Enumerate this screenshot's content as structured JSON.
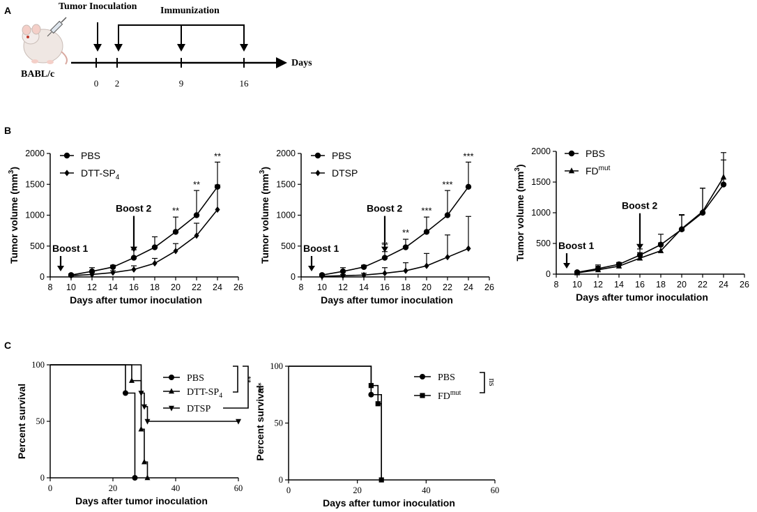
{
  "panel_labels": {
    "a": "A",
    "b": "B",
    "c": "C"
  },
  "timeline": {
    "tumor_inoculation": "Tumor Inoculation",
    "immunization": "Immunization",
    "days_label": "Days",
    "mouse_label": "BABL/c",
    "day_ticks": [
      "0",
      "2",
      "9",
      "16"
    ]
  },
  "colors": {
    "line": "#000000",
    "background": "#ffffff"
  },
  "chart_data": [
    {
      "id": "b1",
      "type": "line",
      "xlabel": "Days after tumor inoculation",
      "ylabel_main": "Tumor volume (mm",
      "ylabel_sup": "3",
      "ylabel_end": ")",
      "xlim": [
        8,
        26
      ],
      "ylim": [
        0,
        2000
      ],
      "xticks": [
        8,
        10,
        12,
        14,
        16,
        18,
        20,
        22,
        24,
        26
      ],
      "yticks": [
        0,
        500,
        1000,
        1500,
        2000
      ],
      "x": [
        10,
        12,
        14,
        16,
        18,
        20,
        22,
        24
      ],
      "series": [
        {
          "name": "PBS",
          "marker": "circle",
          "values": [
            30,
            90,
            160,
            310,
            480,
            730,
            1000,
            1460
          ],
          "err": [
            20,
            60,
            30,
            130,
            170,
            240,
            400,
            400
          ]
        },
        {
          "name": "DTT-SP",
          "sub": "4",
          "marker": "diamond",
          "values": [
            20,
            40,
            70,
            120,
            220,
            420,
            670,
            1090
          ],
          "err": [
            10,
            30,
            30,
            60,
            80,
            120,
            200,
            400
          ]
        }
      ],
      "significance": [
        {
          "x": 20,
          "y": 980,
          "label": "**"
        },
        {
          "x": 22,
          "y": 1400,
          "label": "**"
        },
        {
          "x": 24,
          "y": 1860,
          "label": "**"
        }
      ],
      "boosts": [
        {
          "label": "Boost 1",
          "x": 9,
          "y": 0
        },
        {
          "label": "Boost 2",
          "x": 16,
          "y": 310
        }
      ]
    },
    {
      "id": "b2",
      "type": "line",
      "xlabel": "Days after tumor inoculation",
      "ylabel_main": "Tumor volume (mm",
      "ylabel_sup": "3",
      "ylabel_end": ")",
      "xlim": [
        8,
        26
      ],
      "ylim": [
        0,
        2000
      ],
      "xticks": [
        8,
        10,
        12,
        14,
        16,
        18,
        20,
        22,
        24,
        26
      ],
      "yticks": [
        0,
        500,
        1000,
        1500,
        2000
      ],
      "x": [
        10,
        12,
        14,
        16,
        18,
        20,
        22,
        24
      ],
      "series": [
        {
          "name": "PBS",
          "marker": "circle",
          "values": [
            30,
            90,
            160,
            310,
            480,
            730,
            1000,
            1460
          ],
          "err": [
            20,
            60,
            30,
            100,
            130,
            240,
            400,
            400
          ]
        },
        {
          "name": "DTSP",
          "marker": "diamond",
          "values": [
            10,
            20,
            30,
            60,
            100,
            180,
            320,
            460
          ],
          "err": [
            10,
            20,
            30,
            90,
            130,
            200,
            360,
            520
          ]
        }
      ],
      "significance": [
        {
          "x": 16,
          "y": 420,
          "label": "**"
        },
        {
          "x": 18,
          "y": 620,
          "label": "**"
        },
        {
          "x": 20,
          "y": 980,
          "label": "***"
        },
        {
          "x": 22,
          "y": 1400,
          "label": "***"
        },
        {
          "x": 24,
          "y": 1860,
          "label": "***"
        }
      ],
      "boosts": [
        {
          "label": "Boost 1",
          "x": 9,
          "y": 0
        },
        {
          "label": "Boost 2",
          "x": 16,
          "y": 310
        }
      ]
    },
    {
      "id": "b3",
      "type": "line",
      "xlabel": "Days after tumor inoculation",
      "ylabel_main": "Tumor volume (mm",
      "ylabel_sup": "3",
      "ylabel_end": ")",
      "xlim": [
        8,
        26
      ],
      "ylim": [
        0,
        2000
      ],
      "xticks": [
        8,
        10,
        12,
        14,
        16,
        18,
        20,
        22,
        24,
        26
      ],
      "yticks": [
        0,
        500,
        1000,
        1500,
        2000
      ],
      "x": [
        10,
        12,
        14,
        16,
        18,
        20,
        22,
        24
      ],
      "series": [
        {
          "name": "PBS",
          "marker": "circle",
          "values": [
            30,
            90,
            160,
            310,
            480,
            730,
            1000,
            1460
          ],
          "err": [
            20,
            60,
            30,
            100,
            170,
            240,
            400,
            400
          ]
        },
        {
          "name": "FD",
          "sup": "mut",
          "marker": "triangle",
          "values": [
            20,
            70,
            130,
            260,
            380,
            740,
            1020,
            1580
          ],
          "err": [
            20,
            60,
            40,
            90,
            130,
            220,
            380,
            400
          ]
        }
      ],
      "significance": [],
      "boosts": [
        {
          "label": "Boost 1",
          "x": 9,
          "y": 0
        },
        {
          "label": "Boost 2",
          "x": 16,
          "y": 310
        }
      ]
    },
    {
      "id": "c1",
      "type": "line",
      "xlabel": "Days after tumor inoculation",
      "ylabel": "Percent survival",
      "xlim": [
        0,
        60
      ],
      "ylim": [
        0,
        100
      ],
      "xticks": [
        0,
        20,
        40,
        60
      ],
      "yticks": [
        0,
        50,
        100
      ],
      "series": [
        {
          "name": "PBS",
          "marker": "circle",
          "steps": [
            [
              0,
              100
            ],
            [
              24,
              100
            ],
            [
              24,
              75
            ],
            [
              27,
              75
            ],
            [
              27,
              0
            ]
          ],
          "points": [
            [
              24,
              75
            ],
            [
              27,
              0
            ]
          ]
        },
        {
          "name": "DTT-SP",
          "sub": "4",
          "marker": "triangle",
          "steps": [
            [
              0,
              100
            ],
            [
              26,
              100
            ],
            [
              26,
              86
            ],
            [
              29,
              86
            ],
            [
              29,
              43
            ],
            [
              30,
              43
            ],
            [
              30,
              14
            ],
            [
              31,
              14
            ],
            [
              31,
              0
            ]
          ],
          "points": [
            [
              26,
              86
            ],
            [
              29,
              43
            ],
            [
              30,
              14
            ],
            [
              31,
              0
            ]
          ]
        },
        {
          "name": "DTSP",
          "marker": "triangle-down",
          "steps": [
            [
              0,
              100
            ],
            [
              29,
              100
            ],
            [
              29,
              75
            ],
            [
              30,
              75
            ],
            [
              30,
              63
            ],
            [
              31,
              63
            ],
            [
              31,
              50
            ],
            [
              60,
              50
            ]
          ],
          "points": [
            [
              29,
              75
            ],
            [
              30,
              63
            ],
            [
              31,
              50
            ],
            [
              60,
              50
            ]
          ]
        }
      ],
      "significance": [
        {
          "label": "**"
        },
        {
          "label": "***"
        }
      ]
    },
    {
      "id": "c2",
      "type": "line",
      "xlabel": "Days after tumor inoculation",
      "ylabel": "Percent survival",
      "xlim": [
        0,
        60
      ],
      "ylim": [
        0,
        100
      ],
      "xticks": [
        0,
        20,
        40,
        60
      ],
      "yticks": [
        0,
        50,
        100
      ],
      "series": [
        {
          "name": "PBS",
          "marker": "circle",
          "steps": [
            [
              0,
              100
            ],
            [
              24,
              100
            ],
            [
              24,
              75
            ],
            [
              27,
              75
            ],
            [
              27,
              0
            ]
          ],
          "points": [
            [
              24,
              75
            ]
          ]
        },
        {
          "name": "FD",
          "sup": "mut",
          "marker": "square",
          "steps": [
            [
              0,
              100
            ],
            [
              24,
              100
            ],
            [
              24,
              83
            ],
            [
              26,
              83
            ],
            [
              26,
              67
            ],
            [
              27,
              67
            ],
            [
              27,
              0
            ]
          ],
          "points": [
            [
              24,
              83
            ],
            [
              26,
              67
            ],
            [
              27,
              0
            ]
          ]
        }
      ],
      "significance": [
        {
          "label": "ns"
        }
      ]
    }
  ]
}
